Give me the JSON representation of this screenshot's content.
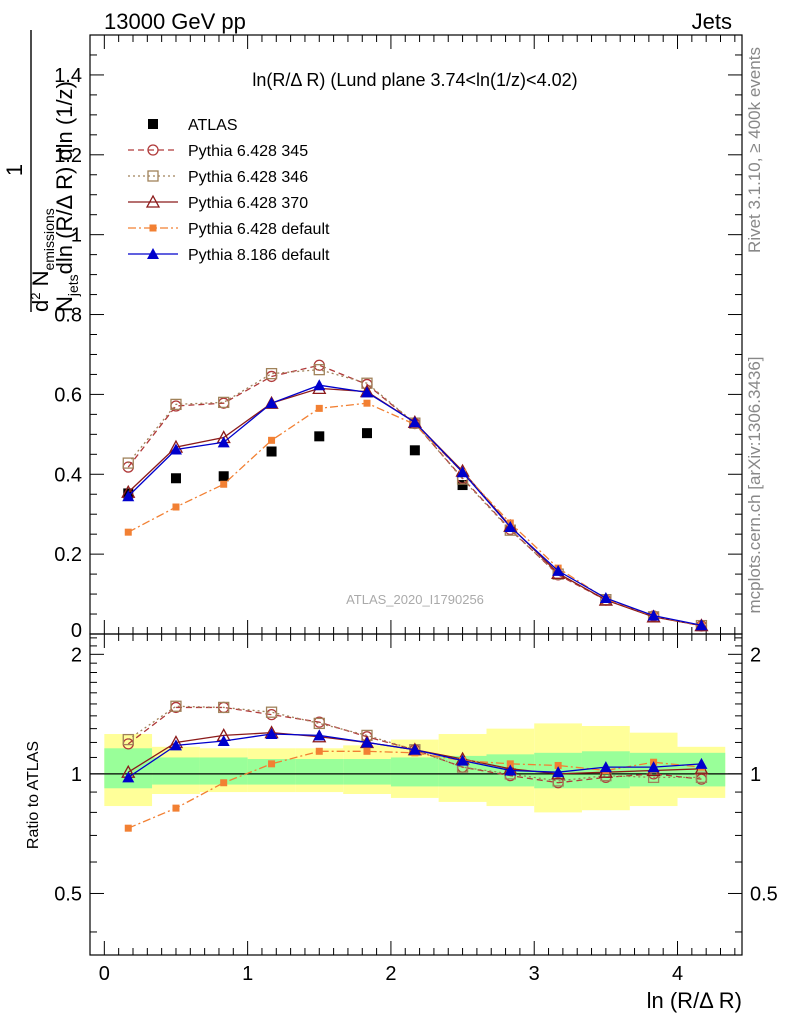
{
  "header": {
    "left": "13000 GeV pp",
    "right": "Jets"
  },
  "side_labels": {
    "rivet": "Rivet 3.1.10, ≥ 400k events",
    "mcplots": "mcplots.cern.ch [arXiv:1306.3436]"
  },
  "watermark": "ATLAS_2020_I1790256",
  "chart_data": [
    {
      "type": "scatter",
      "panel": "main",
      "title": "ln(R/Δ R) (Lund plane 3.74<ln(1/z)<4.02)",
      "ylabel": "1/N_jets d²N_emissions / dln(R/Δ R) dln(1/z)",
      "xlim": [
        -0.1,
        4.45
      ],
      "ylim": [
        0,
        1.5
      ],
      "yticks": [
        0.2,
        0.4,
        0.6,
        0.8,
        1,
        1.2,
        1.4
      ],
      "ytick_labels": [
        "0.2",
        "0.4",
        "0.6",
        "0.8",
        "1",
        "1.2",
        "1.4"
      ],
      "ybottom_label": "0",
      "legend_position": "top-left",
      "x": [
        0.167,
        0.5,
        0.833,
        1.167,
        1.5,
        1.833,
        2.167,
        2.5,
        2.833,
        3.167,
        3.5,
        3.833,
        4.167
      ],
      "series": [
        {
          "name": "ATLAS",
          "color": "#000000",
          "marker": "square",
          "line": "none",
          "values": [
            0.352,
            0.39,
            0.395,
            0.457,
            0.495,
            0.503,
            0.46,
            0.373,
            null,
            null,
            null,
            null,
            null
          ]
        },
        {
          "name": "Pythia 6.428 345",
          "color": "#b03a3a",
          "marker": "circle-open",
          "line": "dashed",
          "values": [
            0.418,
            0.571,
            0.578,
            0.645,
            0.673,
            0.625,
            0.527,
            0.39,
            0.262,
            0.148,
            0.085,
            0.045,
            0.02
          ]
        },
        {
          "name": "Pythia 6.428 346",
          "color": "#a0825a",
          "marker": "square-open",
          "line": "dotted",
          "values": [
            0.428,
            0.575,
            0.58,
            0.652,
            0.662,
            0.628,
            0.528,
            0.388,
            0.26,
            0.15,
            0.086,
            0.043,
            0.021
          ]
        },
        {
          "name": "Pythia 6.428 370",
          "color": "#8b1a1a",
          "marker": "triangle-open",
          "line": "solid",
          "values": [
            0.355,
            0.468,
            0.492,
            0.578,
            0.615,
            0.607,
            0.53,
            0.408,
            0.27,
            0.152,
            0.085,
            0.043,
            0.021
          ]
        },
        {
          "name": "Pythia 6.428 default",
          "color": "#f28033",
          "marker": "square-small",
          "line": "dashdot",
          "values": [
            0.255,
            0.318,
            0.375,
            0.485,
            0.565,
            0.578,
            0.525,
            0.405,
            0.278,
            0.165,
            0.088,
            0.045,
            0.021
          ]
        },
        {
          "name": "Pythia 8.186 default",
          "color": "#0000cc",
          "marker": "triangle-filled",
          "line": "solid",
          "values": [
            0.345,
            0.462,
            0.48,
            0.578,
            0.623,
            0.605,
            0.53,
            0.405,
            0.268,
            0.158,
            0.09,
            0.046,
            0.022
          ]
        }
      ]
    },
    {
      "type": "scatter",
      "panel": "ratio",
      "ylabel": "Ratio to ATLAS",
      "xlabel": "ln (R/Δ R)",
      "xlim": [
        -0.1,
        4.45
      ],
      "ylim": [
        0.35,
        2.25
      ],
      "log_scale": true,
      "yticks": [
        0.5,
        1,
        2
      ],
      "ytick_labels": [
        "0.5",
        "1",
        "2"
      ],
      "xticks": [
        0,
        1,
        2,
        3,
        4
      ],
      "xtick_labels": [
        "0",
        "1",
        "2",
        "3",
        "4"
      ],
      "reference_line": 1,
      "bin_edges": [
        0,
        0.333,
        0.667,
        1,
        1.333,
        1.667,
        2,
        2.333,
        2.667,
        3,
        3.333,
        3.667,
        4,
        4.333
      ],
      "band_stat": [
        [
          0.92,
          1.16
        ],
        [
          0.94,
          1.1
        ],
        [
          0.94,
          1.1
        ],
        [
          0.94,
          1.09
        ],
        [
          0.94,
          1.09
        ],
        [
          0.94,
          1.09
        ],
        [
          0.93,
          1.1
        ],
        [
          0.93,
          1.11
        ],
        [
          0.93,
          1.12
        ],
        [
          0.92,
          1.13
        ],
        [
          0.92,
          1.14
        ],
        [
          0.93,
          1.13
        ],
        [
          0.93,
          1.13
        ]
      ],
      "band_total": [
        [
          0.83,
          1.26
        ],
        [
          0.89,
          1.17
        ],
        [
          0.9,
          1.16
        ],
        [
          0.9,
          1.16
        ],
        [
          0.9,
          1.16
        ],
        [
          0.89,
          1.18
        ],
        [
          0.87,
          1.22
        ],
        [
          0.85,
          1.26
        ],
        [
          0.83,
          1.3
        ],
        [
          0.8,
          1.34
        ],
        [
          0.81,
          1.32
        ],
        [
          0.83,
          1.27
        ],
        [
          0.87,
          1.17
        ]
      ],
      "band_colors": {
        "stat": "#99ff99",
        "total": "#ffff99"
      },
      "x": [
        0.167,
        0.5,
        0.833,
        1.167,
        1.5,
        1.833,
        2.167,
        2.5,
        2.833,
        3.167,
        3.5,
        3.833,
        4.167
      ],
      "series": [
        {
          "name": "Pythia 6.428 345",
          "color": "#b03a3a",
          "marker": "circle-open",
          "line": "dashed",
          "values": [
            1.19,
            1.47,
            1.47,
            1.41,
            1.35,
            1.24,
            1.15,
            1.04,
            0.99,
            0.95,
            0.98,
            1.0,
            0.97
          ]
        },
        {
          "name": "Pythia 6.428 346",
          "color": "#a0825a",
          "marker": "square-open",
          "line": "dotted",
          "values": [
            1.22,
            1.48,
            1.47,
            1.43,
            1.34,
            1.25,
            1.15,
            1.04,
            1.0,
            0.96,
            0.99,
            0.98,
            0.98
          ]
        },
        {
          "name": "Pythia 6.428 370",
          "color": "#8b1a1a",
          "marker": "triangle-open",
          "line": "solid",
          "values": [
            1.01,
            1.2,
            1.25,
            1.27,
            1.24,
            1.2,
            1.15,
            1.09,
            1.03,
            1.0,
            1.01,
            1.02,
            1.03
          ]
        },
        {
          "name": "Pythia 6.428 default",
          "color": "#f28033",
          "marker": "square-small",
          "line": "dashdot",
          "values": [
            0.73,
            0.82,
            0.95,
            1.06,
            1.14,
            1.14,
            1.13,
            1.08,
            1.06,
            1.05,
            1.02,
            1.07,
            1.04
          ]
        },
        {
          "name": "Pythia 8.186 default",
          "color": "#0000cc",
          "marker": "triangle-filled",
          "line": "solid",
          "values": [
            0.98,
            1.18,
            1.21,
            1.26,
            1.25,
            1.2,
            1.15,
            1.08,
            1.02,
            1.01,
            1.04,
            1.04,
            1.06
          ]
        }
      ]
    }
  ]
}
